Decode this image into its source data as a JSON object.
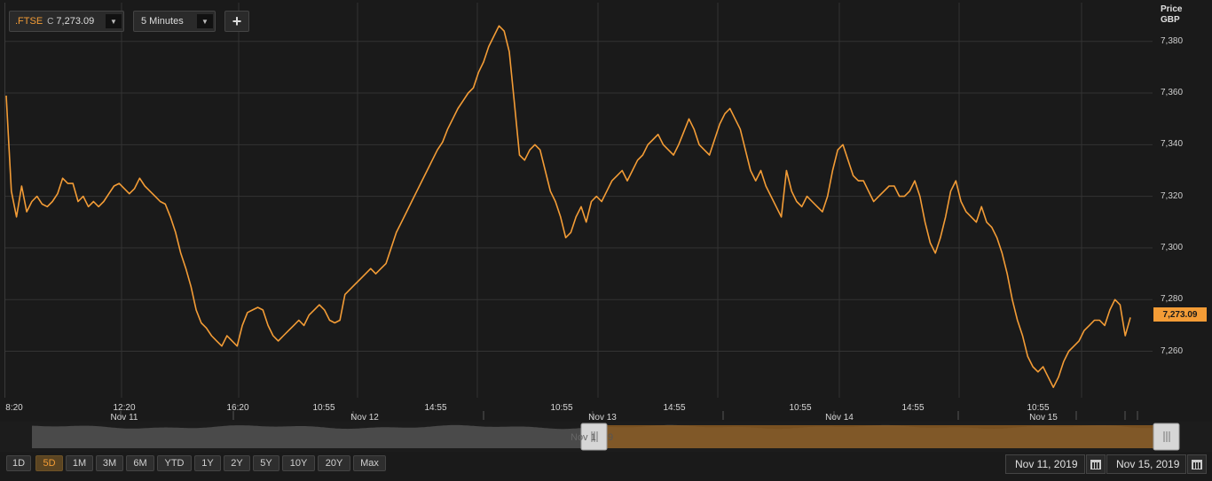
{
  "toolbar": {
    "symbol": ".FTSE",
    "close_prefix": "C",
    "close_value": "7,273.09",
    "interval": "5 Minutes",
    "add_label": "+"
  },
  "axis": {
    "header_line1": "Price",
    "header_line2": "GBP",
    "last_value_label": "7,273.09"
  },
  "colors": {
    "line": "#f39c36",
    "grid": "#333333",
    "background": "#1a1a1a"
  },
  "chart_data": {
    "type": "line",
    "series": [
      {
        "values": [
          7359,
          7322,
          7312,
          7324,
          7314,
          7318,
          7320,
          7317,
          7316,
          7318,
          7321,
          7327,
          7325,
          7325,
          7318,
          7320,
          7316,
          7318,
          7316,
          7318,
          7321,
          7324,
          7325,
          7323,
          7321,
          7323,
          7327,
          7324,
          7322,
          7320,
          7318,
          7317,
          7312,
          7306,
          7298,
          7292,
          7285,
          7276,
          7271,
          7269,
          7266,
          7264,
          7262,
          7266,
          7264,
          7262,
          7270,
          7275,
          7276,
          7277,
          7276,
          7270,
          7266,
          7264,
          7266,
          7268,
          7270,
          7272,
          7270,
          7274,
          7276,
          7278,
          7276,
          7272,
          7271,
          7272,
          7282,
          7284,
          7286,
          7288,
          7290,
          7292,
          7290,
          7292,
          7294,
          7300,
          7306,
          7310,
          7314,
          7318,
          7322,
          7326,
          7330,
          7334,
          7338,
          7341,
          7346,
          7350,
          7354,
          7357,
          7360,
          7362,
          7368,
          7372,
          7378,
          7382,
          7386,
          7384,
          7376,
          7356,
          7336,
          7334,
          7338,
          7340,
          7338,
          7330,
          7322,
          7318,
          7312,
          7304,
          7306,
          7312,
          7316,
          7310,
          7318,
          7320,
          7318,
          7322,
          7326,
          7328,
          7330,
          7326,
          7330,
          7334,
          7336,
          7340,
          7342,
          7344,
          7340,
          7338,
          7336,
          7340,
          7345,
          7350,
          7346,
          7340,
          7338,
          7336,
          7342,
          7348,
          7352,
          7354,
          7350,
          7346,
          7338,
          7330,
          7326,
          7330,
          7324,
          7320,
          7316,
          7312,
          7330,
          7322,
          7318,
          7316,
          7320,
          7318,
          7316,
          7314,
          7320,
          7330,
          7338,
          7340,
          7334,
          7328,
          7326,
          7326,
          7322,
          7318,
          7320,
          7322,
          7324,
          7324,
          7320,
          7320,
          7322,
          7326,
          7320,
          7310,
          7302,
          7298,
          7304,
          7312,
          7322,
          7326,
          7318,
          7314,
          7312,
          7310,
          7316,
          7310,
          7308,
          7304,
          7298,
          7290,
          7280,
          7272,
          7266,
          7258,
          7254,
          7252,
          7254,
          7250,
          7246,
          7250,
          7256,
          7260,
          7262,
          7264,
          7268,
          7270,
          7272,
          7272,
          7270,
          7276,
          7280,
          7278,
          7266,
          7273.09
        ]
      }
    ],
    "y_ticks": [
      "7,260",
      "7,280",
      "7,300",
      "7,320",
      "7,340",
      "7,360",
      "7,380"
    ],
    "ylim": [
      7242,
      7395
    ],
    "x_tick_labels": [
      {
        "label": "8:20",
        "day": ""
      },
      {
        "label": "12:20",
        "day": "Nov 11"
      },
      {
        "label": "16:20",
        "day": ""
      },
      {
        "label": "10:55",
        "day": "Nov 12"
      },
      {
        "label": "14:55",
        "day": ""
      },
      {
        "label": "10:55",
        "day": "Nov 13"
      },
      {
        "label": "14:55",
        "day": ""
      },
      {
        "label": "10:55",
        "day": "Nov 14"
      },
      {
        "label": "14:55",
        "day": ""
      },
      {
        "label": "10:55",
        "day": "Nov 15"
      }
    ],
    "grid": true
  },
  "navigator": {
    "left_handle_text": "Nov 1",
    "right_handle_text": "9"
  },
  "range_buttons": [
    "1D",
    "5D",
    "1M",
    "3M",
    "6M",
    "YTD",
    "1Y",
    "2Y",
    "5Y",
    "10Y",
    "20Y",
    "Max"
  ],
  "active_range": "5D",
  "date_range": {
    "start": "Nov 11, 2019",
    "end": "Nov 15, 2019"
  }
}
